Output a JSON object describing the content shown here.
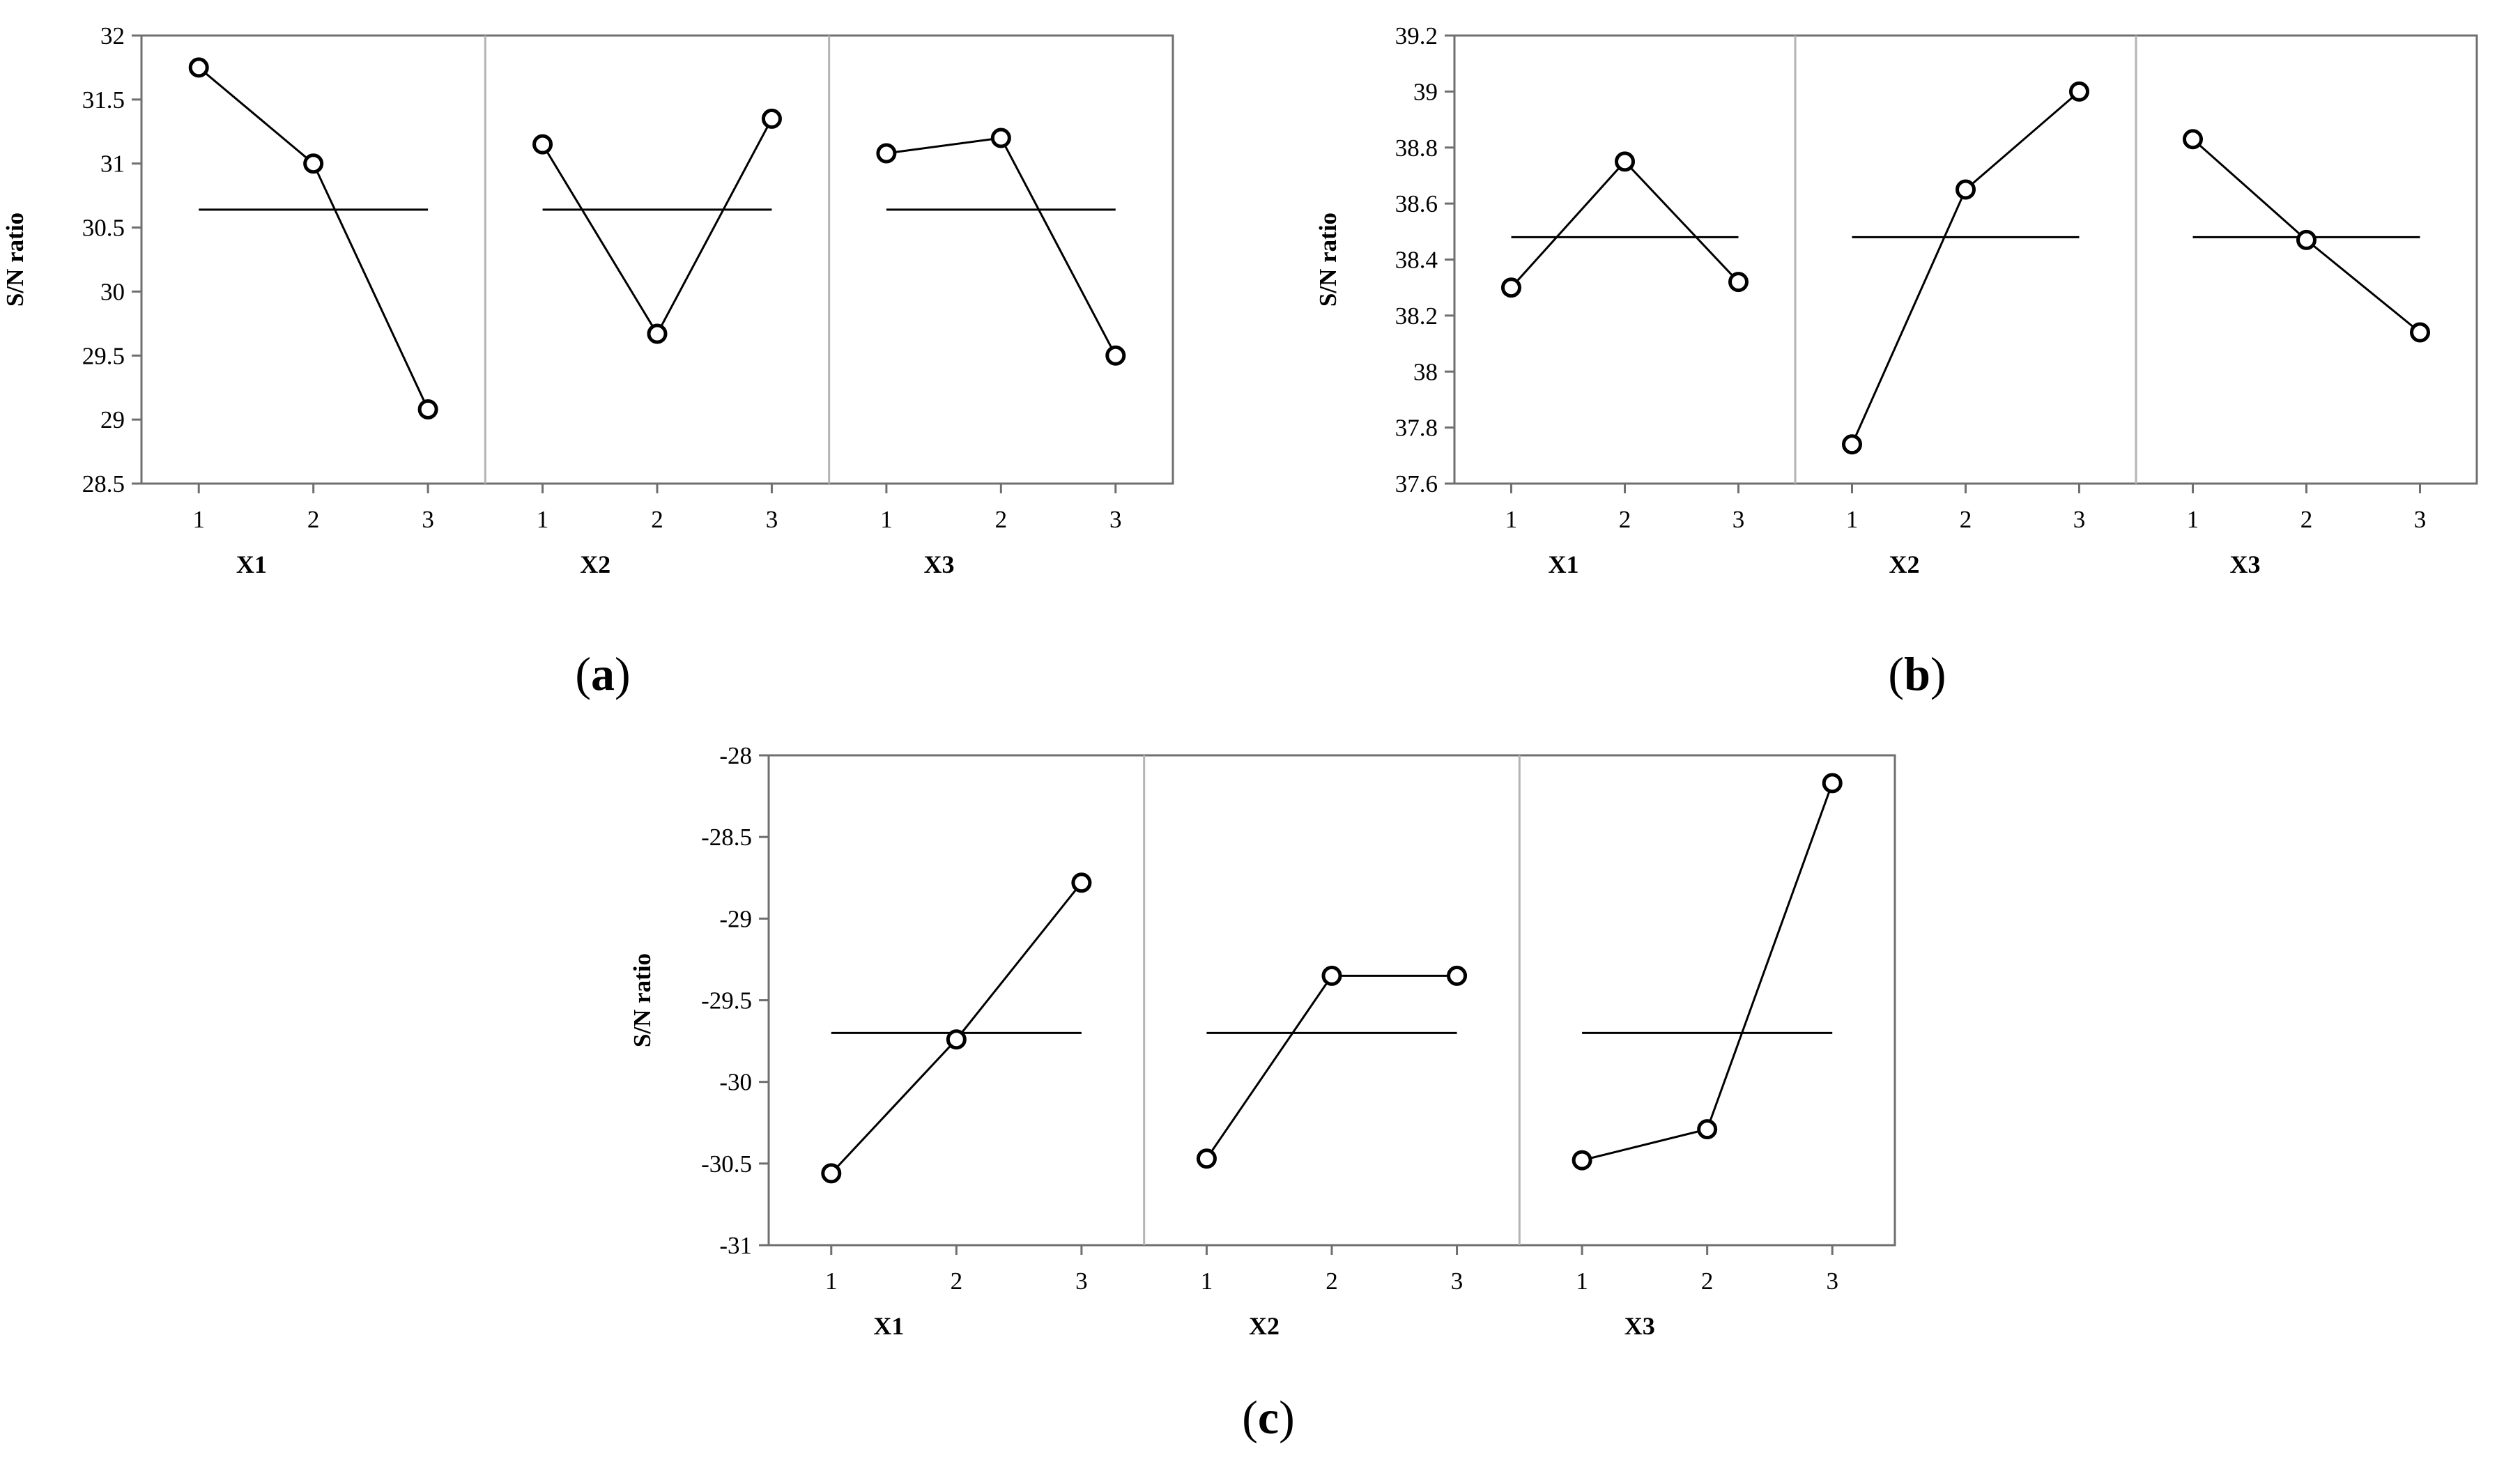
{
  "chart_data": [
    {
      "type": "line",
      "caption_letter": "a",
      "ylabel": "S/N ratio",
      "ylim": [
        28.5,
        32
      ],
      "yticks": [
        "28.5",
        "29",
        "29.5",
        "30",
        "30.5",
        "31",
        "31.5",
        "32"
      ],
      "categories": [
        "1",
        "2",
        "3"
      ],
      "mean": 30.64,
      "panels": [
        {
          "xlabel": "X1",
          "values": [
            31.75,
            31.0,
            29.08
          ]
        },
        {
          "xlabel": "X2",
          "values": [
            31.15,
            29.67,
            31.35
          ]
        },
        {
          "xlabel": "X3",
          "values": [
            31.08,
            31.2,
            29.5
          ]
        }
      ]
    },
    {
      "type": "line",
      "caption_letter": "b",
      "ylabel": "S/N ratio",
      "ylim": [
        37.6,
        39.2
      ],
      "yticks": [
        "37.6",
        "37.8",
        "38",
        "38.2",
        "38.4",
        "38.6",
        "38.8",
        "39",
        "39.2"
      ],
      "categories": [
        "1",
        "2",
        "3"
      ],
      "mean": 38.48,
      "panels": [
        {
          "xlabel": "X1",
          "values": [
            38.3,
            38.75,
            38.32
          ]
        },
        {
          "xlabel": "X2",
          "values": [
            37.74,
            38.65,
            39.0
          ]
        },
        {
          "xlabel": "X3",
          "values": [
            38.83,
            38.47,
            38.14
          ]
        }
      ]
    },
    {
      "type": "line",
      "caption_letter": "c",
      "ylabel": "S/N ratio",
      "ylim": [
        -31,
        -28
      ],
      "yticks": [
        "-31",
        "-30.5",
        "-30",
        "-29.5",
        "-29",
        "-28.5",
        "-28"
      ],
      "categories": [
        "1",
        "2",
        "3"
      ],
      "mean": -29.7,
      "panels": [
        {
          "xlabel": "X1",
          "values": [
            -30.56,
            -29.74,
            -28.78
          ]
        },
        {
          "xlabel": "X2",
          "values": [
            -30.47,
            -29.35,
            -29.35
          ]
        },
        {
          "xlabel": "X3",
          "values": [
            -30.48,
            -30.29,
            -28.17
          ]
        }
      ]
    }
  ]
}
